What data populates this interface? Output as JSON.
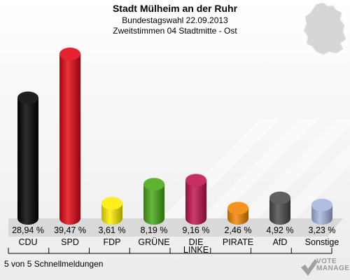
{
  "header": {
    "title": "Stadt Mülheim an der Ruhr",
    "subtitle": "Bundestagswahl 22.09.2013",
    "subtitle2": "Zweitstimmen 04 Stadtmitte - Ost"
  },
  "footer": {
    "note": "5 von 5 Schnellmeldungen",
    "logo_line1": "VOTE",
    "logo_line2": "MANAGER"
  },
  "chart_data": {
    "type": "bar",
    "categories": [
      "CDU",
      "SPD",
      "FDP",
      "GRÜNE",
      "DIE LINKE",
      "PIRATE",
      "AfD",
      "Sonstige"
    ],
    "values": [
      28.94,
      39.47,
      3.61,
      8.19,
      9.16,
      2.46,
      4.92,
      3.23
    ],
    "value_labels": [
      "28,94 %",
      "39,47 %",
      "3,61 %",
      "8,19 %",
      "9,16 %",
      "2,46 %",
      "4,92 %",
      "3,23 %"
    ],
    "colors": [
      "#000000",
      "#e30613",
      "#ffed00",
      "#46a815",
      "#c0134b",
      "#f28500",
      "#4a4a4a",
      "#a7b4e0"
    ],
    "title": "",
    "xlabel": "",
    "ylabel": "",
    "ylim": [
      0,
      42
    ]
  }
}
